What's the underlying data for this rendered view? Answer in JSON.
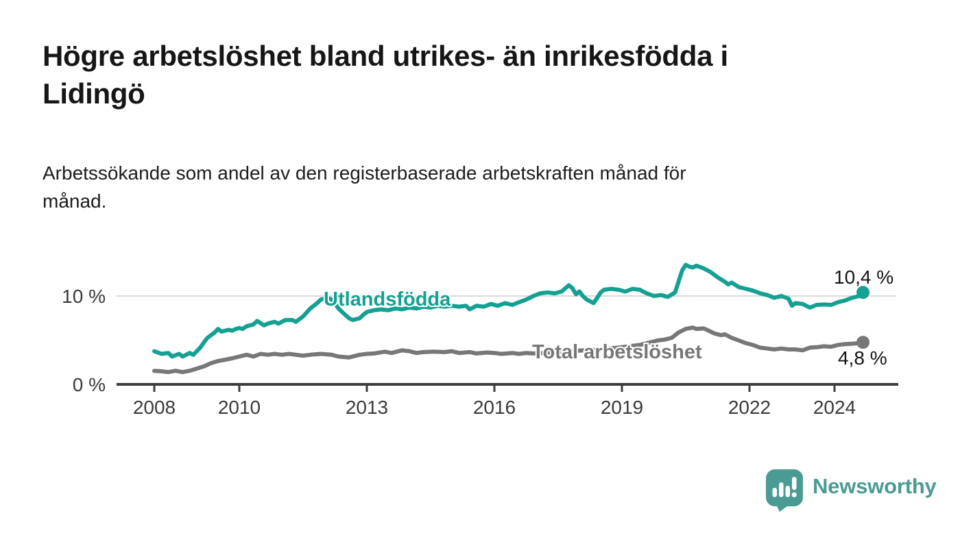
{
  "header": {
    "title": "Högre arbetslöshet bland utrikes- än inrikesfödda i Lidingö",
    "title_line1": "Högre arbetslöshet bland utrikes- än inrikesfödda i",
    "title_line2": "Lidingö",
    "subtitle_line1": "Arbetssökande som andel av den registerbaserade arbetskraften månad för",
    "subtitle_line2": "månad."
  },
  "branding": {
    "name": "Newsworthy",
    "color": "#4a9b93"
  },
  "colors": {
    "teal_series": "#14a092",
    "gray_series": "#777777",
    "grid": "#d9d9d9",
    "axis": "#3c3c3c",
    "axis_text": "#3a3a3a",
    "text": "#161616"
  },
  "chart_data": {
    "type": "line",
    "unit": "%",
    "title": "Högre arbetslöshet bland utrikes- än inrikesfödda i Lidingö",
    "subtitle": "Arbetssökande som andel av den registerbaserade arbetskraften månad för månad.",
    "x_axis": {
      "range": [
        2007.1,
        2025.5
      ],
      "ticks": [
        {
          "value": 2008,
          "label": "2008"
        },
        {
          "value": 2010,
          "label": "2010"
        },
        {
          "value": 2013,
          "label": "2013"
        },
        {
          "value": 2016,
          "label": "2016"
        },
        {
          "value": 2019,
          "label": "2019"
        },
        {
          "value": 2022,
          "label": "2022"
        },
        {
          "value": 2024,
          "label": "2024"
        }
      ]
    },
    "y_axis": {
      "range": [
        0,
        15.4
      ],
      "grid_values": [
        10
      ],
      "ticks": [
        {
          "value": 0,
          "label": "0 %"
        },
        {
          "value": 10,
          "label": "10 %"
        }
      ]
    },
    "legend_position": "inline-labels",
    "series": [
      {
        "name": "Utlandsfödda",
        "color": "#14a092",
        "end_value": 10.4,
        "end_label": "10,4 %",
        "points": [
          [
            2008.0,
            3.8
          ],
          [
            2008.17,
            3.5
          ],
          [
            2008.33,
            3.6
          ],
          [
            2008.42,
            3.2
          ],
          [
            2008.58,
            3.5
          ],
          [
            2008.67,
            3.2
          ],
          [
            2008.83,
            3.6
          ],
          [
            2008.92,
            3.4
          ],
          [
            2009.0,
            3.8
          ],
          [
            2009.08,
            4.2
          ],
          [
            2009.17,
            4.8
          ],
          [
            2009.25,
            5.3
          ],
          [
            2009.42,
            5.9
          ],
          [
            2009.5,
            6.3
          ],
          [
            2009.58,
            6.0
          ],
          [
            2009.75,
            6.2
          ],
          [
            2009.83,
            6.1
          ],
          [
            2009.92,
            6.3
          ],
          [
            2010.0,
            6.4
          ],
          [
            2010.08,
            6.3
          ],
          [
            2010.17,
            6.6
          ],
          [
            2010.33,
            6.8
          ],
          [
            2010.42,
            7.2
          ],
          [
            2010.58,
            6.7
          ],
          [
            2010.67,
            6.9
          ],
          [
            2010.83,
            7.1
          ],
          [
            2010.92,
            6.9
          ],
          [
            2011.08,
            7.3
          ],
          [
            2011.25,
            7.3
          ],
          [
            2011.33,
            7.1
          ],
          [
            2011.5,
            7.7
          ],
          [
            2011.67,
            8.6
          ],
          [
            2011.83,
            9.2
          ],
          [
            2011.92,
            9.6
          ],
          [
            2012.08,
            9.8
          ],
          [
            2012.17,
            9.6
          ],
          [
            2012.25,
            9.2
          ],
          [
            2012.33,
            8.6
          ],
          [
            2012.42,
            8.2
          ],
          [
            2012.58,
            7.5
          ],
          [
            2012.67,
            7.3
          ],
          [
            2012.83,
            7.5
          ],
          [
            2012.92,
            7.9
          ],
          [
            2013.0,
            8.2
          ],
          [
            2013.17,
            8.4
          ],
          [
            2013.33,
            8.5
          ],
          [
            2013.5,
            8.4
          ],
          [
            2013.67,
            8.6
          ],
          [
            2013.83,
            8.5
          ],
          [
            2014.0,
            8.7
          ],
          [
            2014.17,
            8.6
          ],
          [
            2014.33,
            8.8
          ],
          [
            2014.5,
            8.7
          ],
          [
            2014.67,
            8.9
          ],
          [
            2014.83,
            8.8
          ],
          [
            2015.0,
            8.9
          ],
          [
            2015.17,
            8.8
          ],
          [
            2015.33,
            8.9
          ],
          [
            2015.42,
            8.5
          ],
          [
            2015.58,
            8.9
          ],
          [
            2015.75,
            8.8
          ],
          [
            2015.92,
            9.1
          ],
          [
            2016.08,
            8.9
          ],
          [
            2016.25,
            9.2
          ],
          [
            2016.42,
            9.0
          ],
          [
            2016.58,
            9.3
          ],
          [
            2016.75,
            9.6
          ],
          [
            2016.92,
            10.0
          ],
          [
            2017.08,
            10.3
          ],
          [
            2017.25,
            10.4
          ],
          [
            2017.42,
            10.3
          ],
          [
            2017.58,
            10.5
          ],
          [
            2017.75,
            11.2
          ],
          [
            2017.83,
            10.9
          ],
          [
            2017.92,
            10.2
          ],
          [
            2018.0,
            10.5
          ],
          [
            2018.08,
            10.0
          ],
          [
            2018.17,
            9.6
          ],
          [
            2018.33,
            9.2
          ],
          [
            2018.42,
            9.8
          ],
          [
            2018.5,
            10.4
          ],
          [
            2018.58,
            10.7
          ],
          [
            2018.75,
            10.8
          ],
          [
            2018.92,
            10.7
          ],
          [
            2019.08,
            10.5
          ],
          [
            2019.25,
            10.8
          ],
          [
            2019.42,
            10.7
          ],
          [
            2019.58,
            10.3
          ],
          [
            2019.75,
            10.0
          ],
          [
            2019.92,
            10.1
          ],
          [
            2020.08,
            9.9
          ],
          [
            2020.25,
            10.4
          ],
          [
            2020.33,
            11.6
          ],
          [
            2020.42,
            12.9
          ],
          [
            2020.5,
            13.5
          ],
          [
            2020.58,
            13.3
          ],
          [
            2020.67,
            13.2
          ],
          [
            2020.75,
            13.4
          ],
          [
            2020.92,
            13.1
          ],
          [
            2021.08,
            12.7
          ],
          [
            2021.25,
            12.1
          ],
          [
            2021.42,
            11.6
          ],
          [
            2021.5,
            11.3
          ],
          [
            2021.58,
            11.5
          ],
          [
            2021.75,
            11.0
          ],
          [
            2021.92,
            10.8
          ],
          [
            2022.08,
            10.6
          ],
          [
            2022.25,
            10.3
          ],
          [
            2022.42,
            10.1
          ],
          [
            2022.58,
            9.8
          ],
          [
            2022.75,
            10.0
          ],
          [
            2022.92,
            9.7
          ],
          [
            2023.0,
            8.9
          ],
          [
            2023.08,
            9.2
          ],
          [
            2023.25,
            9.1
          ],
          [
            2023.42,
            8.7
          ],
          [
            2023.58,
            9.0
          ],
          [
            2023.75,
            9.05
          ],
          [
            2023.92,
            9.0
          ],
          [
            2024.08,
            9.3
          ],
          [
            2024.25,
            9.5
          ],
          [
            2024.42,
            9.8
          ],
          [
            2024.58,
            10.0
          ],
          [
            2024.67,
            10.4
          ]
        ]
      },
      {
        "name": "Total arbetslöshet",
        "color": "#777777",
        "end_value": 4.8,
        "end_label": "4,8 %",
        "points": [
          [
            2008.0,
            1.6
          ],
          [
            2008.17,
            1.55
          ],
          [
            2008.33,
            1.45
          ],
          [
            2008.5,
            1.6
          ],
          [
            2008.67,
            1.45
          ],
          [
            2008.83,
            1.6
          ],
          [
            2009.0,
            1.85
          ],
          [
            2009.17,
            2.1
          ],
          [
            2009.33,
            2.45
          ],
          [
            2009.5,
            2.7
          ],
          [
            2009.67,
            2.85
          ],
          [
            2009.83,
            3.0
          ],
          [
            2010.0,
            3.2
          ],
          [
            2010.17,
            3.4
          ],
          [
            2010.33,
            3.2
          ],
          [
            2010.5,
            3.5
          ],
          [
            2010.67,
            3.4
          ],
          [
            2010.83,
            3.5
          ],
          [
            2011.0,
            3.4
          ],
          [
            2011.17,
            3.5
          ],
          [
            2011.33,
            3.4
          ],
          [
            2011.5,
            3.3
          ],
          [
            2011.67,
            3.4
          ],
          [
            2011.92,
            3.5
          ],
          [
            2012.17,
            3.4
          ],
          [
            2012.33,
            3.2
          ],
          [
            2012.58,
            3.1
          ],
          [
            2012.83,
            3.4
          ],
          [
            2013.0,
            3.5
          ],
          [
            2013.17,
            3.55
          ],
          [
            2013.42,
            3.75
          ],
          [
            2013.58,
            3.6
          ],
          [
            2013.83,
            3.9
          ],
          [
            2014.0,
            3.8
          ],
          [
            2014.17,
            3.6
          ],
          [
            2014.33,
            3.7
          ],
          [
            2014.58,
            3.75
          ],
          [
            2014.83,
            3.7
          ],
          [
            2015.0,
            3.8
          ],
          [
            2015.17,
            3.6
          ],
          [
            2015.42,
            3.7
          ],
          [
            2015.58,
            3.55
          ],
          [
            2015.83,
            3.65
          ],
          [
            2016.0,
            3.6
          ],
          [
            2016.17,
            3.5
          ],
          [
            2016.42,
            3.6
          ],
          [
            2016.58,
            3.5
          ],
          [
            2016.75,
            3.6
          ],
          [
            2016.92,
            3.55
          ],
          [
            2017.17,
            3.6
          ],
          [
            2017.42,
            3.7
          ],
          [
            2017.67,
            3.75
          ],
          [
            2017.92,
            3.85
          ],
          [
            2018.17,
            3.9
          ],
          [
            2018.42,
            4.0
          ],
          [
            2018.67,
            4.1
          ],
          [
            2018.92,
            4.2
          ],
          [
            2019.17,
            4.35
          ],
          [
            2019.42,
            4.5
          ],
          [
            2019.67,
            4.8
          ],
          [
            2019.83,
            5.0
          ],
          [
            2020.0,
            5.1
          ],
          [
            2020.17,
            5.3
          ],
          [
            2020.33,
            5.9
          ],
          [
            2020.5,
            6.3
          ],
          [
            2020.67,
            6.45
          ],
          [
            2020.75,
            6.3
          ],
          [
            2020.92,
            6.35
          ],
          [
            2021.0,
            6.2
          ],
          [
            2021.17,
            5.8
          ],
          [
            2021.33,
            5.6
          ],
          [
            2021.42,
            5.7
          ],
          [
            2021.58,
            5.3
          ],
          [
            2021.75,
            5.0
          ],
          [
            2021.92,
            4.7
          ],
          [
            2022.08,
            4.5
          ],
          [
            2022.25,
            4.2
          ],
          [
            2022.42,
            4.1
          ],
          [
            2022.58,
            4.0
          ],
          [
            2022.75,
            4.1
          ],
          [
            2022.92,
            4.0
          ],
          [
            2023.08,
            4.0
          ],
          [
            2023.25,
            3.9
          ],
          [
            2023.42,
            4.2
          ],
          [
            2023.58,
            4.25
          ],
          [
            2023.75,
            4.35
          ],
          [
            2023.92,
            4.3
          ],
          [
            2024.08,
            4.5
          ],
          [
            2024.25,
            4.6
          ],
          [
            2024.42,
            4.65
          ],
          [
            2024.58,
            4.7
          ],
          [
            2024.67,
            4.8
          ]
        ]
      }
    ]
  }
}
